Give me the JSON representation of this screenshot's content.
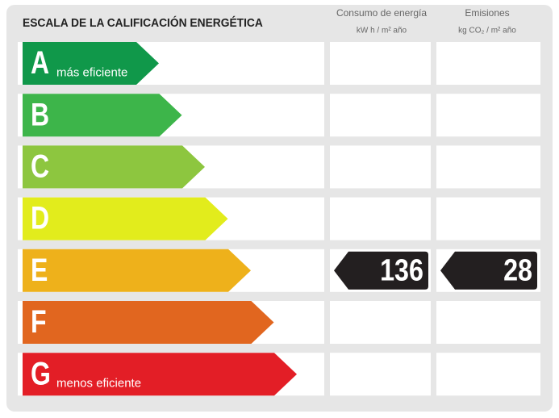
{
  "header": {
    "title": "ESCALA DE LA CALIFICACIÓN ENERGÉTICA",
    "columns": [
      {
        "name": "Consumo de energía",
        "unit": "kW h / m² año"
      },
      {
        "name": "Emisiones",
        "unit": "kg CO₂ / m² año"
      }
    ]
  },
  "rows": [
    {
      "letter": "A",
      "note": "más eficiente",
      "color": "#10984a"
    },
    {
      "letter": "B",
      "color": "#3db54a"
    },
    {
      "letter": "C",
      "color": "#8dc63f"
    },
    {
      "letter": "D",
      "color": "#e2ec1c"
    },
    {
      "letter": "E",
      "color": "#eeb11b",
      "consumption": 136,
      "emissions": 28
    },
    {
      "letter": "F",
      "color": "#e1661f"
    },
    {
      "letter": "G",
      "note": "menos eficiente",
      "color": "#e31e26"
    }
  ]
}
